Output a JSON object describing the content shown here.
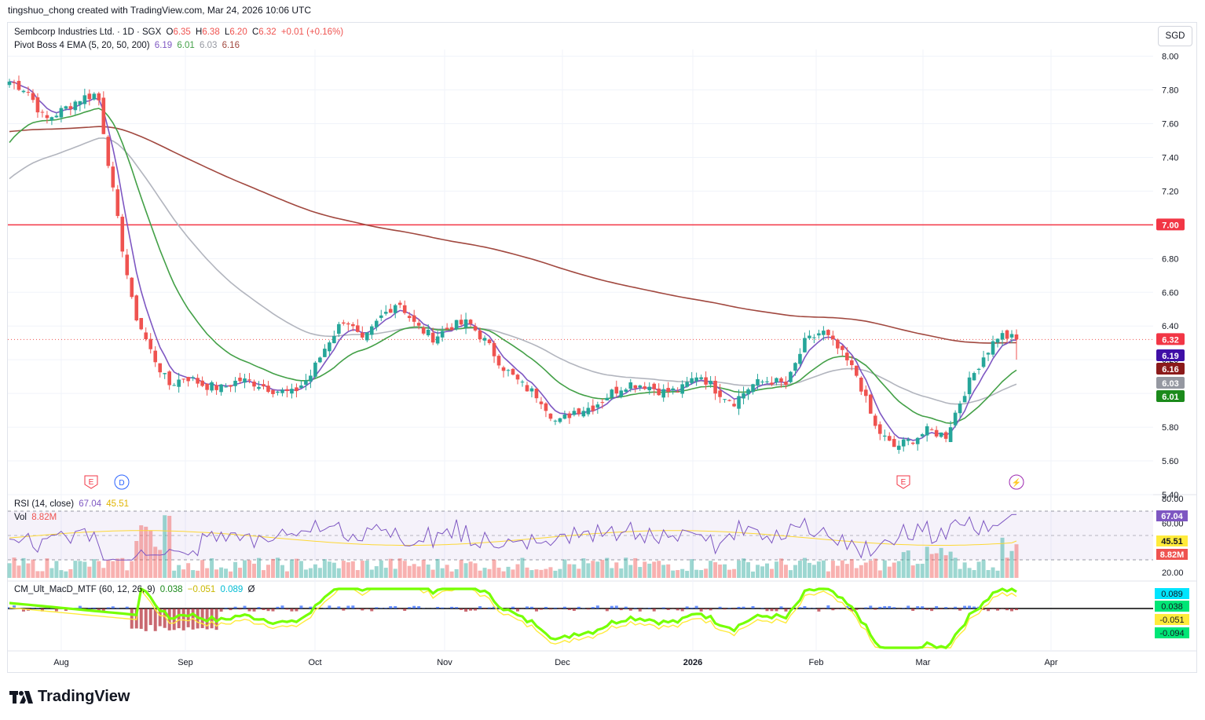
{
  "header": {
    "created_text": "tingshuo_chong created with TradingView.com, Mar 24, 2026 10:06 UTC"
  },
  "legend": {
    "symbol": "Sembcorp Industries Ltd. · 1D · SGX",
    "o_label": "O",
    "o_value": "6.35",
    "h_label": "H",
    "h_value": "6.38",
    "l_label": "L",
    "l_value": "6.20",
    "c_label": "C",
    "c_value": "6.32",
    "change": "+0.01 (+0.16%)",
    "ema_name": "Pivot Boss 4 EMA (5, 20, 50, 200)",
    "ema_values": [
      "6.19",
      "6.01",
      "6.03",
      "6.16"
    ],
    "rsi_name": "RSI (14, close)",
    "rsi_values": [
      "67.04",
      "45.51"
    ],
    "vol_name": "Vol",
    "vol_value": "8.82M",
    "macd_name": "CM_Ult_MacD_MTF (60, 12, 26, 9)",
    "macd_values": [
      "0.038",
      "−0.051",
      "0.089",
      "Ø"
    ]
  },
  "currency_button": "SGD",
  "footer": {
    "brand": "TradingView"
  },
  "colors": {
    "up": "#26a69a",
    "down": "#ef5350",
    "ema5": "#7e57c2",
    "ema20": "#43a047",
    "ema50": "#b2b5be",
    "ema200": "#a1483f",
    "resistance": "#f23645",
    "rsi": "#7e57c2",
    "rsi_ma": "#fdd835",
    "macd_up": "#76ff03",
    "macd_down": "#ff5252"
  },
  "chart_data": {
    "type": "candlestick",
    "title": "Sembcorp Industries Ltd. · 1D · SGX",
    "x_ticks": [
      "Aug",
      "Sep",
      "Oct",
      "Nov",
      "Dec",
      "2026",
      "Feb",
      "Mar",
      "Apr"
    ],
    "y_ticks": [
      "8.00",
      "7.80",
      "7.60",
      "7.40",
      "7.20",
      "7.00",
      "6.80",
      "6.60",
      "6.40",
      "6.20",
      "6.00",
      "5.80",
      "5.60",
      "5.40"
    ],
    "ylim": [
      5.4,
      8.04
    ],
    "resistance_line": 7.0,
    "current_price": 6.32,
    "price_labels": [
      {
        "text": "7.00",
        "value": 7.0,
        "color": "#f23645"
      },
      {
        "text": "6.32",
        "value": 6.32,
        "color": "#f23645"
      },
      {
        "text": "6.19",
        "value": 6.19,
        "color": "#3f0fa6"
      },
      {
        "text": "6.16",
        "value": 6.16,
        "color": "#8b1a1a"
      },
      {
        "text": "6.03",
        "value": 6.03,
        "color": "#9598a1"
      },
      {
        "text": "6.01",
        "value": 6.01,
        "color": "#1b8a1b"
      }
    ],
    "ohlc_anchors": [
      [
        7.78,
        7.85
      ],
      [
        7.82,
        7.8
      ],
      [
        7.7,
        7.62
      ],
      [
        7.75,
        7.68
      ],
      [
        7.82,
        7.75
      ],
      [
        7.88,
        7.78
      ],
      [
        7.6,
        7.1
      ],
      [
        6.8,
        6.5
      ],
      [
        6.4,
        6.25
      ],
      [
        6.1,
        6.05
      ],
      [
        6.0,
        6.1
      ],
      [
        6.08,
        6.05
      ],
      [
        6.05,
        6.03
      ],
      [
        6.02,
        6.08
      ],
      [
        6.1,
        6.06
      ],
      [
        6.08,
        6.02
      ],
      [
        6.0,
        6.0
      ],
      [
        6.03,
        6.1
      ],
      [
        6.15,
        6.3
      ],
      [
        6.4,
        6.45
      ],
      [
        6.35,
        6.3
      ],
      [
        6.35,
        6.45
      ],
      [
        6.55,
        6.55
      ],
      [
        6.45,
        6.4
      ],
      [
        6.35,
        6.33
      ],
      [
        6.35,
        6.4
      ],
      [
        6.45,
        6.42
      ],
      [
        6.4,
        6.3
      ],
      [
        6.25,
        6.15
      ],
      [
        6.1,
        6.05
      ],
      [
        6.05,
        5.98
      ],
      [
        5.9,
        5.82
      ],
      [
        5.85,
        5.9
      ],
      [
        5.95,
        5.92
      ],
      [
        5.95,
        6.0
      ],
      [
        6.02,
        6.06
      ],
      [
        6.08,
        6.05
      ],
      [
        6.03,
        6.01
      ],
      [
        6.0,
        6.02
      ],
      [
        6.1,
        6.12
      ],
      [
        6.05,
        6.02
      ],
      [
        6.0,
        5.95
      ],
      [
        6.0,
        6.05
      ],
      [
        6.1,
        6.08
      ],
      [
        6.05,
        6.05
      ],
      [
        6.1,
        6.3
      ],
      [
        6.35,
        6.37
      ],
      [
        6.3,
        6.25
      ],
      [
        6.15,
        6.1
      ],
      [
        5.95,
        5.8
      ],
      [
        5.75,
        5.68
      ],
      [
        5.7,
        5.72
      ],
      [
        5.75,
        5.78
      ],
      [
        5.72,
        5.75
      ],
      [
        5.8,
        6.0
      ],
      [
        6.1,
        6.2
      ],
      [
        6.25,
        6.35
      ],
      [
        6.32,
        6.32
      ]
    ],
    "ema": [
      {
        "name": "EMA 5",
        "value": 6.19
      },
      {
        "name": "EMA 20",
        "value": 6.01
      },
      {
        "name": "EMA 50",
        "value": 6.03
      },
      {
        "name": "EMA 200",
        "value": 6.16
      }
    ],
    "events": [
      {
        "label": "E",
        "date": "Aug"
      },
      {
        "label": "D",
        "date": "Aug"
      },
      {
        "label": "E",
        "date": "Feb"
      },
      {
        "label": "⚡",
        "date": "Mar"
      }
    ],
    "rsi": {
      "value": 67.04,
      "ma": 45.51,
      "ticks": [
        "80.00",
        "60.00",
        "20.00"
      ],
      "ylim": [
        20,
        80
      ]
    },
    "volume": {
      "last": "8.82M"
    },
    "macd": {
      "macd": 0.038,
      "signal": -0.051,
      "hist": 0.089,
      "labels": [
        "0.089",
        "0.038",
        "-0.051",
        "-0.094"
      ]
    }
  }
}
